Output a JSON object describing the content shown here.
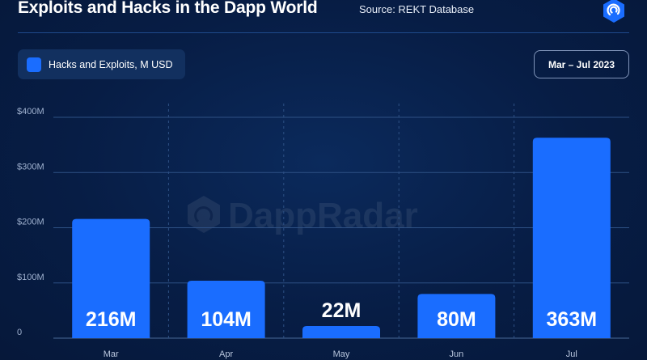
{
  "header": {
    "title": "Exploits and Hacks in the Dapp World",
    "source": "Source: REKT Database"
  },
  "brand": {
    "logo_icon": "dappradar-logo-icon",
    "watermark": "DappRadar"
  },
  "colors": {
    "background": "#071d45",
    "bar": "#1a6dff",
    "legend_bg": "#12305f",
    "grid": "#3a5a8a"
  },
  "chart_data": {
    "type": "bar",
    "categories": [
      "Mar",
      "Apr",
      "May",
      "Jun",
      "Jul"
    ],
    "series": [
      {
        "name": "Hacks and Exploits, M USD",
        "values": [
          216,
          104,
          22,
          80,
          363
        ]
      }
    ],
    "data_labels": [
      "216M",
      "104M",
      "22M",
      "80M",
      "363M"
    ],
    "ylim": [
      0,
      400
    ],
    "yticks": [
      0,
      100,
      200,
      300,
      400
    ],
    "ytick_labels": [
      "0",
      "$100M",
      "$200M",
      "$300M",
      "$400M"
    ],
    "grid": true,
    "legend_placement": "top-left",
    "date_range": "Mar – Jul 2023"
  }
}
